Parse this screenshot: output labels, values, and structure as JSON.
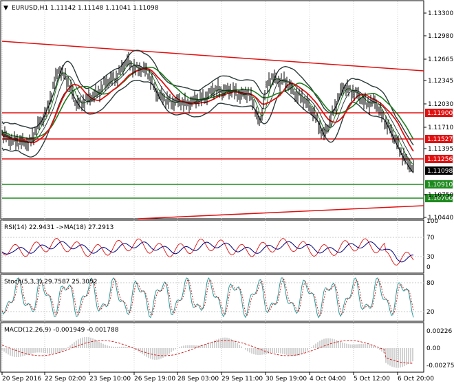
{
  "colors": {
    "background": "#ffffff",
    "frame": "#000000",
    "grid": "#c8c8c8",
    "price_bar": "#000000",
    "bollinger": "#2b3a3a",
    "ma_green": "#1e7a1e",
    "ma_red": "#e01010",
    "trendline": "#e01010",
    "level_red": "#e01010",
    "level_green": "#1e8a1e",
    "rsi": "#e01010",
    "rsi_ma": "#000080",
    "stoch_main": "#2a9a9a",
    "stoch_signal": "#d01010",
    "macd_hist": "#b4b4b4",
    "macd_signal": "#d01010"
  },
  "main_panel": {
    "title": "EURUSD,H1  1.11142 1.11148 1.11041 1.11098",
    "price_axis_labels": [
      "1.13300",
      "1.12980",
      "1.12665",
      "1.12345",
      "1.12030",
      "1.11710",
      "1.11395",
      "1.10750",
      "1.10440"
    ],
    "level_tags": [
      {
        "value": "1.11900",
        "kind": "red"
      },
      {
        "value": "1.11527",
        "kind": "red"
      },
      {
        "value": "1.11256",
        "kind": "red"
      },
      {
        "value": "1.11098",
        "kind": "current"
      },
      {
        "value": "1.10910",
        "kind": "green"
      },
      {
        "value": "1.10700",
        "kind": "green"
      }
    ]
  },
  "rsi_panel": {
    "title": "RSI(14) 22.9431  ->MA(18) 27.2913",
    "axis_labels": [
      "100",
      "70",
      "30",
      "0"
    ]
  },
  "stoch_panel": {
    "title": "Stoch(5,3,3) 29.7587 25.3052",
    "axis_labels": [
      "80",
      "20"
    ]
  },
  "macd_panel": {
    "title": "MACD(12,26,9) -0.001949 -0.001788",
    "axis_labels": [
      "0.00226",
      "0.00",
      "-0.00275"
    ]
  },
  "time_axis_labels": [
    "20 Sep 2016",
    "22 Sep 02:00",
    "23 Sep 10:00",
    "26 Sep 19:00",
    "28 Sep 03:00",
    "29 Sep 11:00",
    "30 Sep 19:00",
    "4 Oct 04:00",
    "5 Oct 12:00",
    "6 Oct 20:00"
  ]
}
